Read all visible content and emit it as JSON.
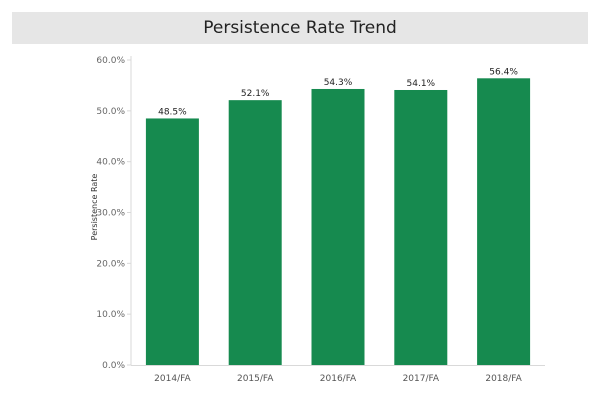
{
  "header": {
    "title": "Persistence Rate Trend"
  },
  "chart_data": {
    "type": "bar",
    "title": "Persistence Rate Trend",
    "xlabel": "",
    "ylabel": "Persistence Rate",
    "categories": [
      "2014/FA",
      "2015/FA",
      "2016/FA",
      "2017/FA",
      "2018/FA"
    ],
    "values": [
      48.5,
      52.1,
      54.3,
      54.1,
      56.4
    ],
    "data_labels": [
      "48.5%",
      "52.1%",
      "54.3%",
      "54.1%",
      "56.4%"
    ],
    "y_ticks": [
      0,
      10,
      20,
      30,
      40,
      50,
      60
    ],
    "y_tick_labels": [
      "0.0%",
      "10.0%",
      "20.0%",
      "30.0%",
      "40.0%",
      "50.0%",
      "60.0%"
    ],
    "ylim": [
      0,
      60
    ],
    "grid": false,
    "legend": "none",
    "bar_color": "#168a4f"
  }
}
